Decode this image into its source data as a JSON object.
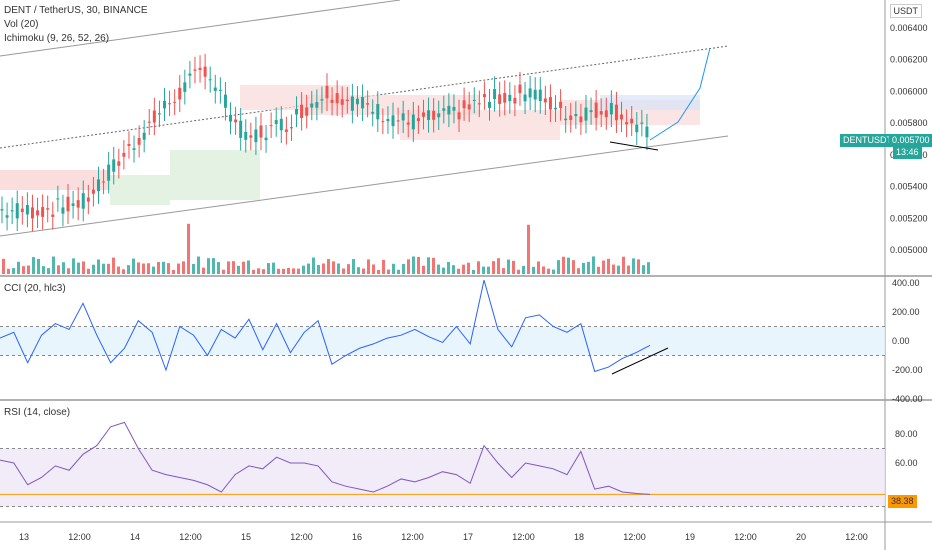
{
  "header": {
    "symbol": "DENT / TetherUS, 30, BINANCE",
    "vol": "Vol (20)",
    "ichimoku": "Ichimoku (9, 26, 52, 26)",
    "currency": "USDT"
  },
  "price_axis": {
    "ticks": [
      "0.006400",
      "0.006200",
      "0.006000",
      "0.005800",
      "0.005600",
      "0.005400",
      "0.005200",
      "0.005000"
    ],
    "values": [
      0.0064,
      0.0062,
      0.006,
      0.0058,
      0.0056,
      0.0054,
      0.0052,
      0.005
    ],
    "symbol_tag": "DENTUSDT",
    "last_price": "0.005700",
    "countdown": "13:46"
  },
  "cci": {
    "label": "CCI (20, hlc3)",
    "ticks": [
      "400.00",
      "200.00",
      "0.00",
      "-200.00",
      "-400.00"
    ],
    "values": [
      400,
      200,
      0,
      -200,
      -400
    ],
    "band": [
      100,
      -100
    ]
  },
  "rsi": {
    "label": "RSI (14, close)",
    "ticks": [
      "80.00",
      "60.00"
    ],
    "values": [
      80,
      60
    ],
    "band": [
      70,
      30
    ],
    "current": "38.38"
  },
  "time_axis": [
    "13",
    "12:00",
    "14",
    "12:00",
    "15",
    "12:00",
    "16",
    "12:00",
    "17",
    "12:00",
    "18",
    "12:00",
    "19",
    "12:00",
    "20",
    "12:00"
  ],
  "colors": {
    "up": "#26a69a",
    "down": "#ef5350",
    "line": "#2962ff",
    "accent": "#ff9800",
    "cci": "#2962ff",
    "rsi": "#7e57c2"
  },
  "chart_data": [
    {
      "type": "candlestick",
      "title": "DENT / TetherUS, 30, BINANCE",
      "x_days": [
        "13",
        "14",
        "15",
        "16",
        "17",
        "18",
        "19",
        "20"
      ],
      "close_approx": [
        0.00525,
        0.0053,
        0.0056,
        0.0059,
        0.00615,
        0.0057,
        0.0058,
        0.006,
        0.0059,
        0.0058,
        0.00585,
        0.00595,
        0.006,
        0.00585,
        0.0059,
        0.0057
      ],
      "last": 0.0057,
      "ylim": [
        0.0049,
        0.0065
      ]
    },
    {
      "type": "line",
      "title": "CCI (20, hlc3)",
      "values": [
        20,
        60,
        -150,
        40,
        120,
        80,
        260,
        40,
        -150,
        -50,
        140,
        60,
        -200,
        100,
        40,
        -100,
        80,
        20,
        150,
        -60,
        120,
        -80,
        60,
        140,
        -160,
        -100,
        -50,
        -20,
        20,
        40,
        80,
        30,
        -10,
        100,
        -20,
        420,
        80,
        -40,
        160,
        180,
        100,
        60,
        120,
        -210,
        -180,
        -120,
        -80,
        -30
      ],
      "ylim": [
        -400,
        400
      ]
    },
    {
      "type": "line",
      "title": "RSI (14, close)",
      "values": [
        62,
        60,
        45,
        50,
        58,
        55,
        66,
        72,
        85,
        88,
        70,
        55,
        52,
        50,
        48,
        45,
        40,
        52,
        58,
        56,
        64,
        60,
        60,
        58,
        47,
        44,
        42,
        40,
        44,
        49,
        47,
        50,
        54,
        52,
        46,
        72,
        60,
        50,
        60,
        58,
        56,
        52,
        68,
        42,
        44,
        40,
        39,
        38.38
      ],
      "ylim": [
        20,
        100
      ]
    }
  ]
}
